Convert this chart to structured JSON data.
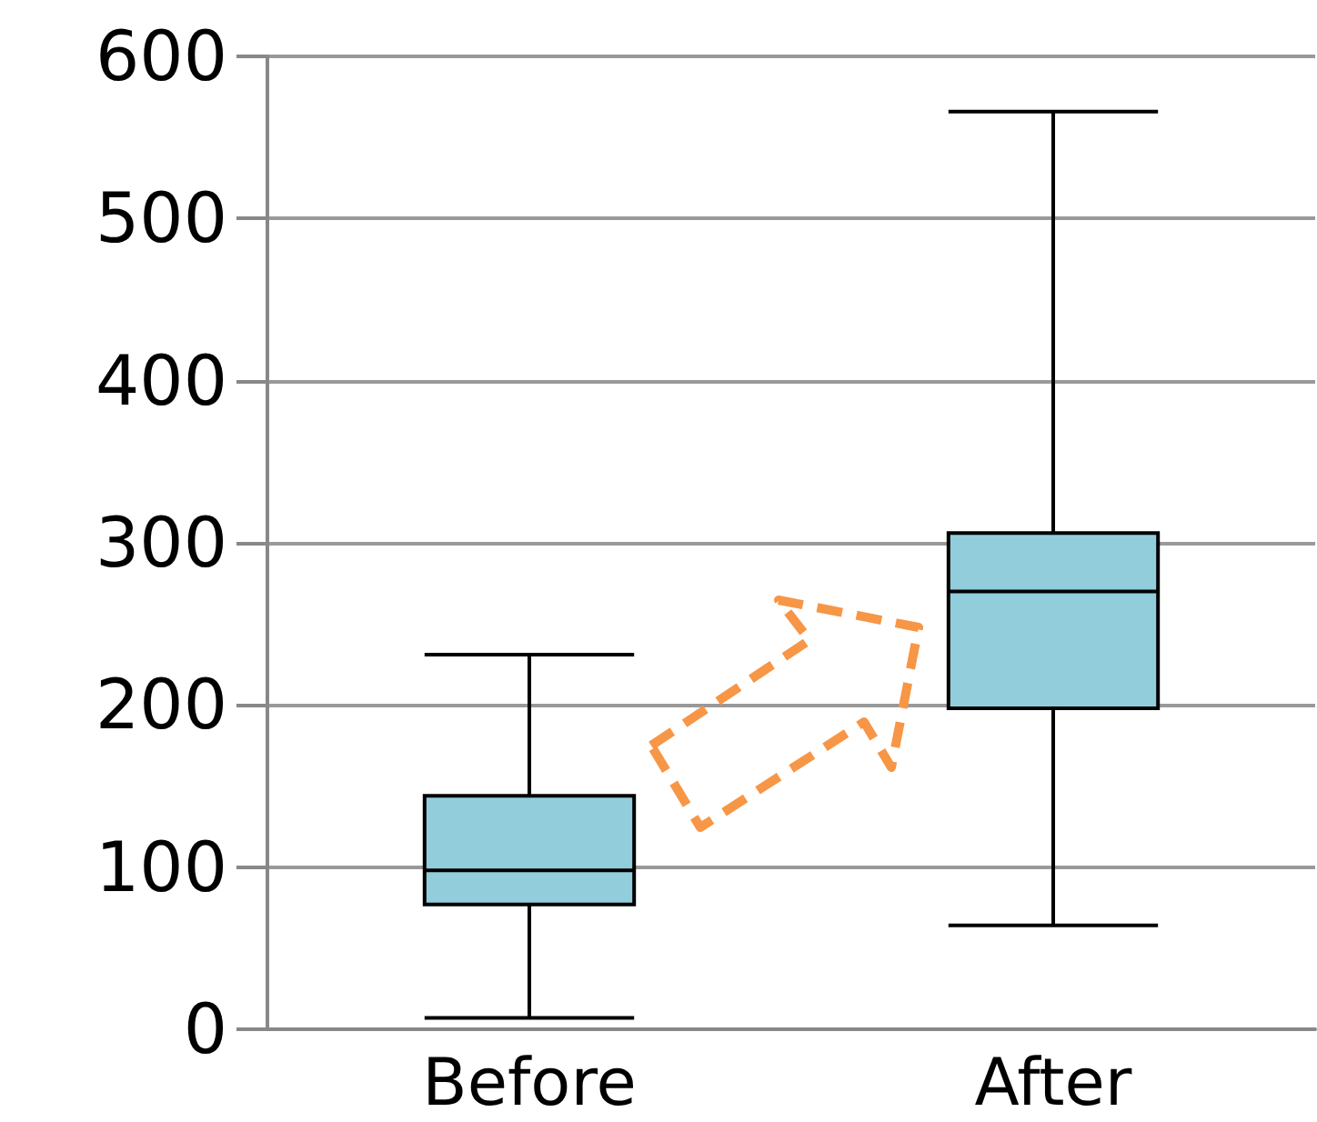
{
  "chart_data": {
    "type": "box",
    "categories": [
      "Before",
      "After"
    ],
    "color": "#92cddc",
    "boxes": [
      {
        "low": 7,
        "q1": 77,
        "median": 98,
        "q3": 144,
        "high": 231
      },
      {
        "low": 64,
        "q1": 198,
        "median": 270,
        "q3": 306,
        "high": 566
      }
    ],
    "ylim": [
      0,
      600
    ],
    "yticks": [
      0,
      100,
      200,
      300,
      400,
      500,
      600
    ],
    "grid": "y"
  }
}
